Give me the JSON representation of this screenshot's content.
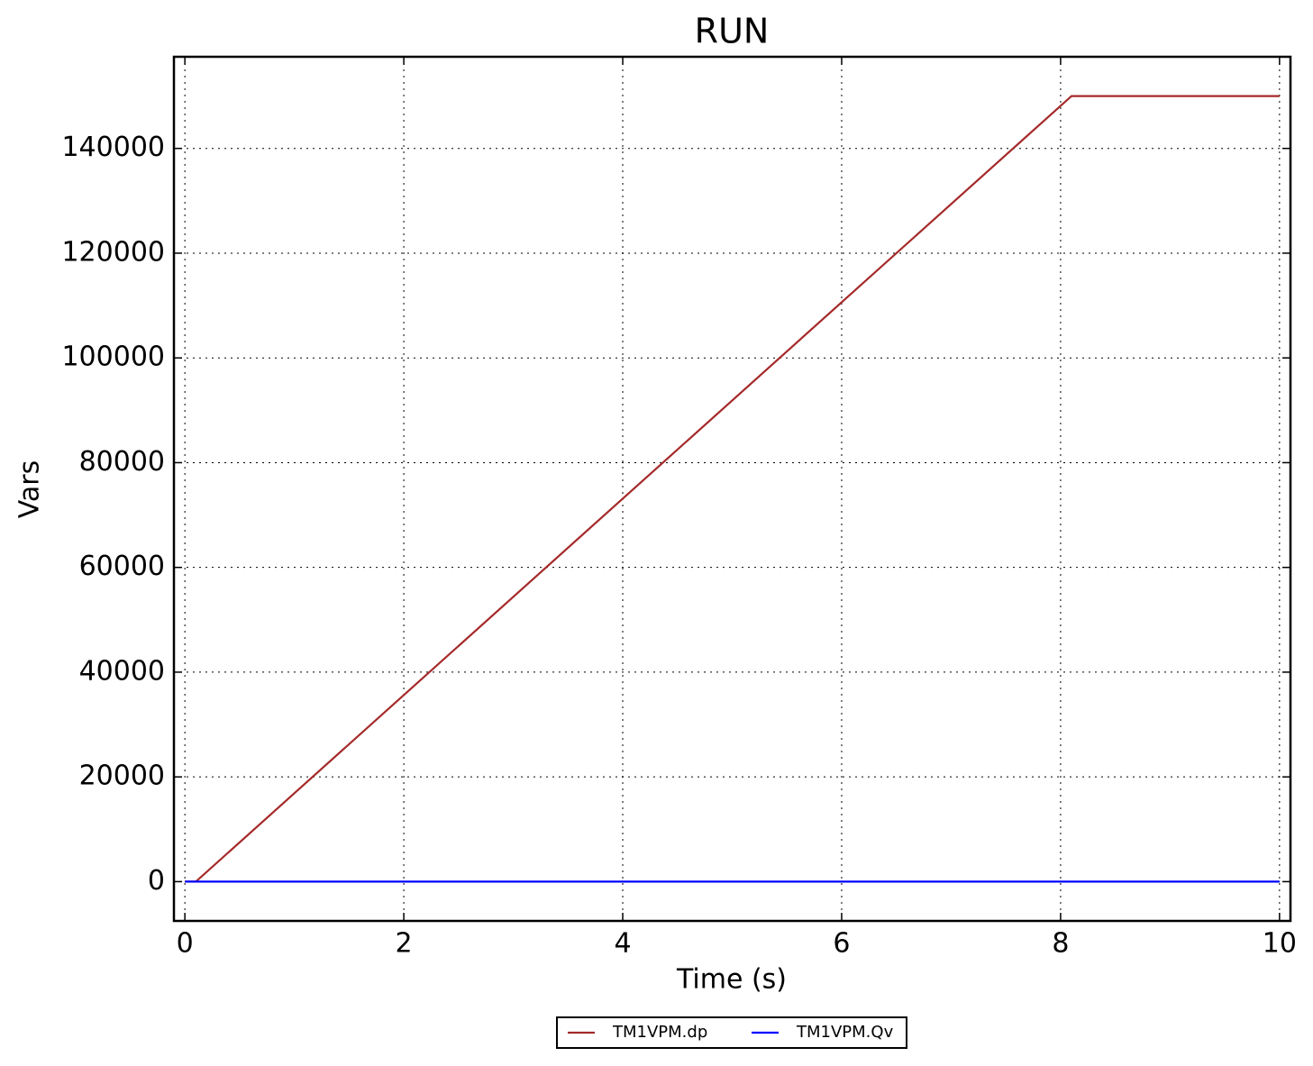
{
  "chart_data": {
    "type": "line",
    "title": "RUN",
    "x_label": "Time (s)",
    "y_label": "Vars",
    "x": [
      0,
      0.1,
      8.1,
      10
    ],
    "series": [
      {
        "name": "TM1VPM.dp",
        "color": "#a52a2a",
        "values": [
          0,
          0,
          150000,
          150000
        ]
      },
      {
        "name": "TM1VPM.Qv",
        "color": "#0000ff",
        "values": [
          0,
          0,
          0,
          0
        ]
      }
    ],
    "xlim": [
      -0.1,
      10.1
    ],
    "xticks": [
      0,
      2,
      4,
      6,
      8,
      10
    ],
    "ylim": [
      -7500,
      157500
    ],
    "yticks": [
      0,
      20000,
      40000,
      60000,
      80000,
      100000,
      120000,
      140000
    ],
    "grid": true,
    "legend": "bottom"
  }
}
